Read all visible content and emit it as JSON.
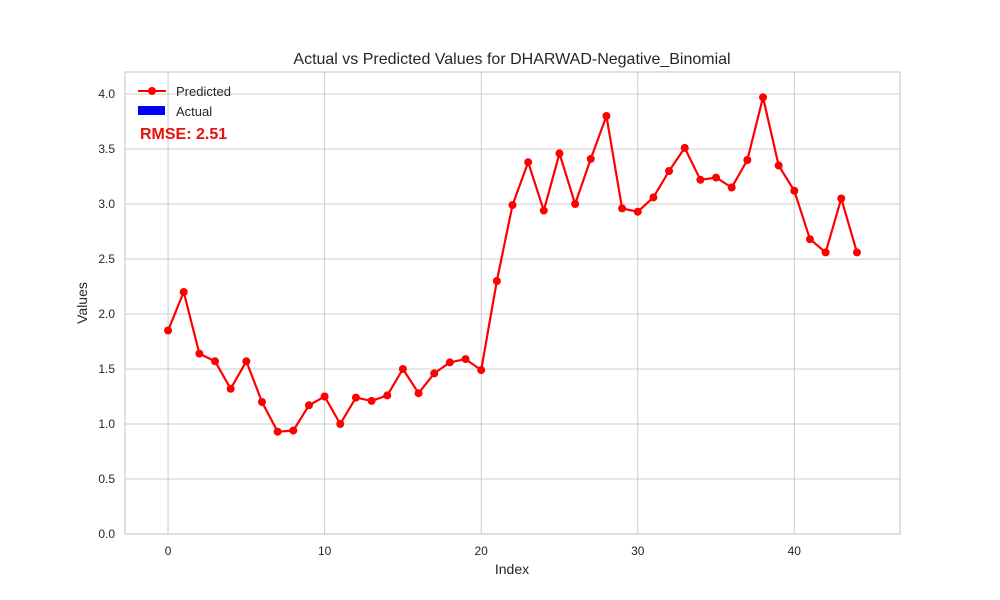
{
  "chart_data": {
    "type": "line",
    "title": "Actual vs Predicted Values for DHARWAD-Negative_Binomial",
    "xlabel": "Index",
    "ylabel": "Values",
    "xlim": [
      -2.75,
      46.75
    ],
    "ylim": [
      0,
      4.2
    ],
    "x_ticks": [
      0,
      10,
      20,
      30,
      40
    ],
    "y_ticks": [
      0.0,
      0.5,
      1.0,
      1.5,
      2.0,
      2.5,
      3.0,
      3.5,
      4.0
    ],
    "x_tick_labels": [
      "0",
      "10",
      "20",
      "30",
      "40"
    ],
    "y_tick_labels": [
      "0.0",
      "0.5",
      "1.0",
      "1.5",
      "2.0",
      "2.5",
      "3.0",
      "3.5",
      "4.0"
    ],
    "grid": true,
    "legend_position": "top-left",
    "annotation": "RMSE: 2.51",
    "series": [
      {
        "name": "Predicted",
        "color": "#ff0000",
        "marker": "circle",
        "x": [
          0,
          1,
          2,
          3,
          4,
          5,
          6,
          7,
          8,
          9,
          10,
          11,
          12,
          13,
          14,
          15,
          16,
          17,
          18,
          19,
          20,
          21,
          22,
          23,
          24,
          25,
          26,
          27,
          28,
          29,
          30,
          31,
          32,
          33,
          34,
          35,
          36,
          37,
          38,
          39,
          40,
          41,
          42,
          43,
          44
        ],
        "values": [
          1.85,
          2.2,
          1.64,
          1.57,
          1.32,
          1.57,
          1.2,
          0.93,
          0.94,
          1.17,
          1.25,
          1.0,
          1.24,
          1.21,
          1.26,
          1.5,
          1.28,
          1.46,
          1.56,
          1.59,
          1.49,
          2.3,
          2.99,
          3.38,
          2.94,
          3.46,
          3.0,
          3.41,
          3.8,
          2.96,
          2.93,
          3.06,
          3.3,
          3.51,
          3.22,
          3.24,
          3.15,
          3.4,
          3.97,
          3.35,
          3.12,
          2.68,
          2.56,
          3.05,
          2.56
        ]
      },
      {
        "name": "Actual",
        "color": "#0000ff",
        "marker": "bar",
        "x": [],
        "values": []
      }
    ]
  }
}
